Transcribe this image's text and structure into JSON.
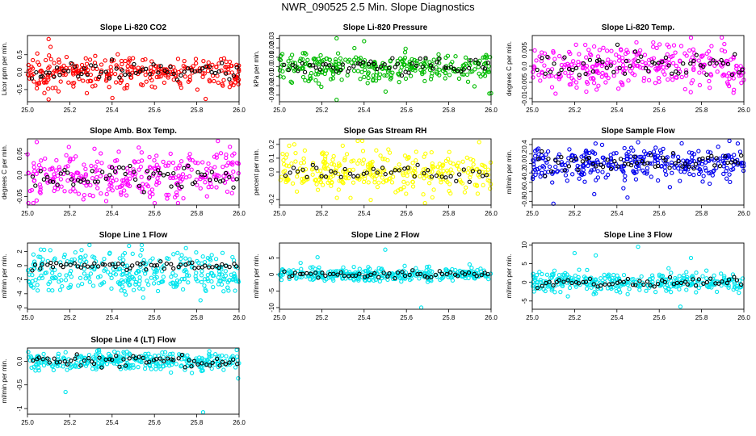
{
  "figure": {
    "title": "NWR_090525  2.5 Min. Slope Diagnostics"
  },
  "chart_data": [
    {
      "type": "scatter",
      "title": "Slope Li-820 CO2",
      "ylabel": "Licor ppm per min.",
      "xlim": [
        25.0,
        26.0
      ],
      "ylim": [
        -0.85,
        1.05
      ],
      "xticks": [
        "25.0",
        "25.2",
        "25.4",
        "25.6",
        "25.8",
        "26.0"
      ],
      "yticks": [
        -0.5,
        0.0,
        0.5
      ],
      "color": "#ff0000",
      "overlay_color": "#000000",
      "spread": 0.22,
      "outliers": [
        [
          25.1,
          0.95
        ],
        [
          25.1,
          -0.78
        ],
        [
          25.08,
          -0.6
        ]
      ],
      "n_points": 300,
      "n_overlay": 60
    },
    {
      "type": "scatter",
      "title": "Slope Li-820 Pressure",
      "ylabel": "kPa per min.",
      "xlim": [
        25.0,
        26.0
      ],
      "ylim": [
        -0.037,
        0.033
      ],
      "xticks": [
        "25.0",
        "25.2",
        "25.4",
        "25.6",
        "25.8",
        "26.0"
      ],
      "yticks": [
        -0.03,
        -0.02,
        -0.01,
        0.0,
        0.01,
        0.02,
        0.03
      ],
      "color": "#00bb00",
      "overlay_color": "#000000",
      "spread": 0.008,
      "outliers": [
        [
          25.27,
          0.03
        ],
        [
          25.27,
          -0.035
        ],
        [
          25.4,
          0.027
        ],
        [
          26.0,
          -0.028
        ]
      ],
      "n_points": 300,
      "n_overlay": 60
    },
    {
      "type": "scatter",
      "title": "Slope Li-820 Temp.",
      "ylabel": "degrees C per min.",
      "xlim": [
        25.0,
        26.0
      ],
      "ylim": [
        -0.011,
        0.0095
      ],
      "xticks": [
        "25.0",
        "25.2",
        "25.4",
        "25.6",
        "25.8",
        "26.0"
      ],
      "yticks": [
        -0.01,
        -0.005,
        0.0,
        0.005
      ],
      "color": "#ff00ff",
      "overlay_color": "#000000",
      "spread": 0.0035,
      "outliers": [
        [
          25.75,
          0.0088
        ],
        [
          25.11,
          -0.0085
        ]
      ],
      "n_points": 300,
      "n_overlay": 60
    },
    {
      "type": "scatter",
      "title": "Slope Amb. Box Temp.",
      "ylabel": "degrees C per min.",
      "xlim": [
        25.0,
        26.0
      ],
      "ylim": [
        -0.07,
        0.085
      ],
      "xticks": [
        "25.0",
        "25.2",
        "25.4",
        "25.6",
        "25.8",
        "26.0"
      ],
      "yticks": [
        -0.05,
        0.0,
        0.05
      ],
      "color": "#ff00ff",
      "overlay_color": "#000000",
      "spread": 0.03,
      "outliers": [
        [
          25.9,
          0.08
        ]
      ],
      "n_points": 300,
      "n_overlay": 60
    },
    {
      "type": "scatter",
      "title": "Slope Gas Stream RH",
      "ylabel": "percent per min.",
      "xlim": [
        25.0,
        26.0
      ],
      "ylim": [
        -0.24,
        0.24
      ],
      "xticks": [
        "25.0",
        "25.2",
        "25.4",
        "25.6",
        "25.8",
        "26.0"
      ],
      "yticks": [
        -0.2,
        0.0,
        0.1,
        0.2
      ],
      "color": "#ffff00",
      "overlay_color": "#000000",
      "spread": 0.07,
      "outliers": [
        [
          25.07,
          0.2
        ]
      ],
      "n_points": 320,
      "n_overlay": 45
    },
    {
      "type": "scatter",
      "title": "Slope Sample Flow",
      "ylabel": "ml/min per min.",
      "xlim": [
        25.0,
        26.0
      ],
      "ylim": [
        -0.88,
        0.52
      ],
      "xticks": [
        "25.0",
        "25.2",
        "25.4",
        "25.6",
        "25.8",
        "26.0"
      ],
      "yticks": [
        -0.8,
        -0.6,
        -0.4,
        -0.2,
        0.0,
        0.2,
        0.4
      ],
      "color": "#0000ee",
      "overlay_color": "#000000",
      "spread": 0.18,
      "outliers": [
        [
          25.1,
          -0.85
        ],
        [
          25.45,
          -0.72
        ],
        [
          25.5,
          0.45
        ]
      ],
      "n_points": 320,
      "n_overlay": 60
    },
    {
      "type": "scatter",
      "title": "Slope Line 1 Flow",
      "ylabel": "ml/min per min.",
      "xlim": [
        25.0,
        26.0
      ],
      "ylim": [
        -6.2,
        3.2
      ],
      "xticks": [
        "25.0",
        "25.2",
        "25.4",
        "25.6",
        "25.8",
        "26.0"
      ],
      "yticks": [
        -6,
        -4,
        -2,
        0,
        2
      ],
      "color": "#00e5ee",
      "overlay_color": "#000000",
      "spread": 1.3,
      "outliers": [
        [
          25.48,
          2.8
        ]
      ],
      "n_points": 320,
      "n_overlay": 60
    },
    {
      "type": "scatter",
      "title": "Slope Line 2 Flow",
      "ylabel": "ml/min per min.",
      "xlim": [
        25.0,
        26.0
      ],
      "ylim": [
        -10.5,
        9.5
      ],
      "xticks": [
        "25.0",
        "25.2",
        "25.4",
        "25.6",
        "25.8",
        "26.0"
      ],
      "yticks": [
        -10,
        -5,
        0,
        5
      ],
      "color": "#00e5ee",
      "overlay_color": "#000000",
      "spread": 1.0,
      "outliers": [
        [
          25.18,
          5.2
        ],
        [
          25.5,
          7.5
        ],
        [
          25.67,
          -10
        ],
        [
          25.1,
          3.5
        ]
      ],
      "n_points": 320,
      "n_overlay": 55
    },
    {
      "type": "scatter",
      "title": "Slope Line 3 Flow",
      "ylabel": "ml/min per min.",
      "xlim": [
        25.0,
        26.0
      ],
      "ylim": [
        -7.2,
        10.5
      ],
      "xticks": [
        "25.0",
        "25.2",
        "25.4",
        "25.6",
        "25.8",
        "26.0"
      ],
      "yticks": [
        -5,
        0,
        5,
        10
      ],
      "color": "#00e5ee",
      "overlay_color": "#000000",
      "spread": 1.3,
      "outliers": [
        [
          25.2,
          7.8
        ],
        [
          25.5,
          9.5
        ],
        [
          25.3,
          7.2
        ],
        [
          25.7,
          -6.5
        ],
        [
          25.75,
          6.5
        ]
      ],
      "n_points": 320,
      "n_overlay": 55
    },
    {
      "type": "scatter",
      "title": "Slope Line 4 (LT) Flow",
      "ylabel": "ml/min per min.",
      "xlim": [
        25.0,
        26.0
      ],
      "ylim": [
        -1.12,
        0.28
      ],
      "xticks": [
        "25.0",
        "25.2",
        "25.4",
        "25.6",
        "25.8",
        "26.0"
      ],
      "yticks": [
        -1.0,
        -0.5,
        0.0
      ],
      "color": "#00e5ee",
      "overlay_color": "#000000",
      "spread": 0.1,
      "outliers": [
        [
          25.83,
          -1.08
        ],
        [
          25.18,
          -0.65
        ],
        [
          25.33,
          0.22
        ],
        [
          25.27,
          -0.05
        ]
      ],
      "n_points": 320,
      "n_overlay": 60
    }
  ]
}
